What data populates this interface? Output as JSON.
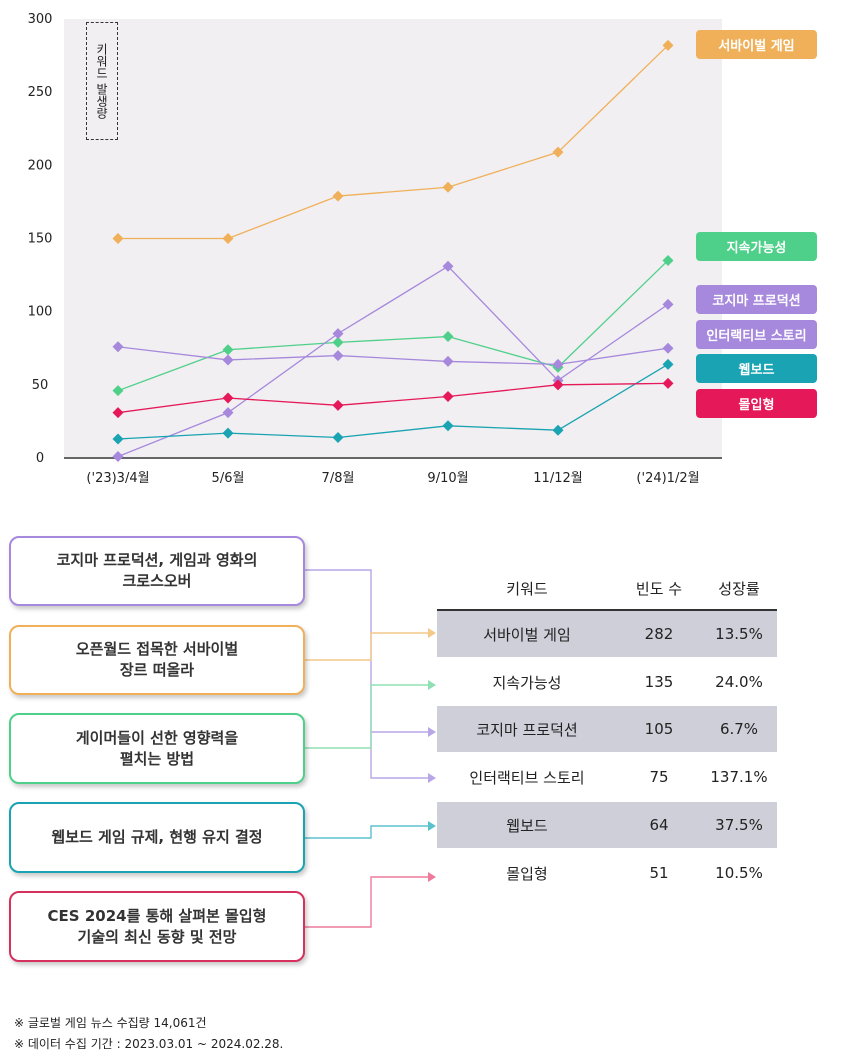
{
  "chart_data": {
    "type": "line",
    "ylabel": "키워드 발생량",
    "ylim": [
      0,
      300
    ],
    "yticks": [
      "0",
      "50",
      "100",
      "150",
      "200",
      "250",
      "300"
    ],
    "categories": [
      "('23)3/4월",
      "5/6월",
      "7/8월",
      "9/10월",
      "11/12월",
      "('24)1/2월"
    ],
    "series": [
      {
        "name": "서바이벌 게임",
        "color": "#f0b05a",
        "values": [
          150,
          150,
          179,
          185,
          209,
          282
        ]
      },
      {
        "name": "지속가능성",
        "color": "#4fd08a",
        "values": [
          46,
          74,
          79,
          83,
          62,
          135
        ]
      },
      {
        "name": "코지마 프로덕션",
        "color": "#a688dd",
        "values": [
          1,
          31,
          85,
          131,
          53,
          105
        ]
      },
      {
        "name": "인터랙티브 스토리",
        "color": "#a688dd",
        "values": [
          76,
          67,
          70,
          66,
          64,
          75
        ]
      },
      {
        "name": "웹보드",
        "color": "#1aa3b2",
        "values": [
          13,
          17,
          14,
          22,
          19,
          64
        ]
      },
      {
        "name": "몰입형",
        "color": "#e5195a",
        "values": [
          31,
          41,
          36,
          42,
          50,
          51
        ]
      }
    ]
  },
  "legend": [
    {
      "label": "서바이벌 게임",
      "color": "#f0b05a"
    },
    {
      "label": "지속가능성",
      "color": "#4fd08a"
    },
    {
      "label": "코지마 프로덕션",
      "color": "#a688dd"
    },
    {
      "label": "인터랙티브 스토리",
      "color": "#a688dd"
    },
    {
      "label": "웹보드",
      "color": "#1aa3b2"
    },
    {
      "label": "몰입형",
      "color": "#e5195a"
    }
  ],
  "news": [
    {
      "lines": [
        "코지마 프로덕션, 게임과 영화의",
        "크로스오버"
      ],
      "color": "#a688dd"
    },
    {
      "lines": [
        "오픈월드 접목한 서바이벌",
        "장르 떠올라"
      ],
      "color": "#f0b05a"
    },
    {
      "lines": [
        "게이머들이 선한 영향력을",
        "펼치는 방법"
      ],
      "color": "#4fd08a"
    },
    {
      "lines": [
        "웹보드 게임 규제, 현행 유지 결정"
      ],
      "color": "#1aa3b2"
    },
    {
      "lines": [
        "CES 2024를 통해 살펴본 몰입형",
        "기술의 최신 동향 및 전망"
      ],
      "color": "#e5195a"
    }
  ],
  "table": {
    "headers": {
      "keyword": "키워드",
      "freq": "빈도 수",
      "growth": "성장률"
    },
    "rows": [
      {
        "keyword": "서바이벌 게임",
        "freq": "282",
        "growth": "13.5%"
      },
      {
        "keyword": "지속가능성",
        "freq": "135",
        "growth": "24.0%"
      },
      {
        "keyword": "코지마 프로덕션",
        "freq": "105",
        "growth": "6.7%"
      },
      {
        "keyword": "인터랙티브 스토리",
        "freq": "75",
        "growth": "137.1%"
      },
      {
        "keyword": "웹보드",
        "freq": "64",
        "growth": "37.5%"
      },
      {
        "keyword": "몰입형",
        "freq": "51",
        "growth": "10.5%"
      }
    ]
  },
  "footnotes": [
    "※ 글로벌 게임 뉴스 수집량 14,061건",
    "※ 데이터 수집 기간 : 2023.03.01 ~ 2024.02.28."
  ]
}
